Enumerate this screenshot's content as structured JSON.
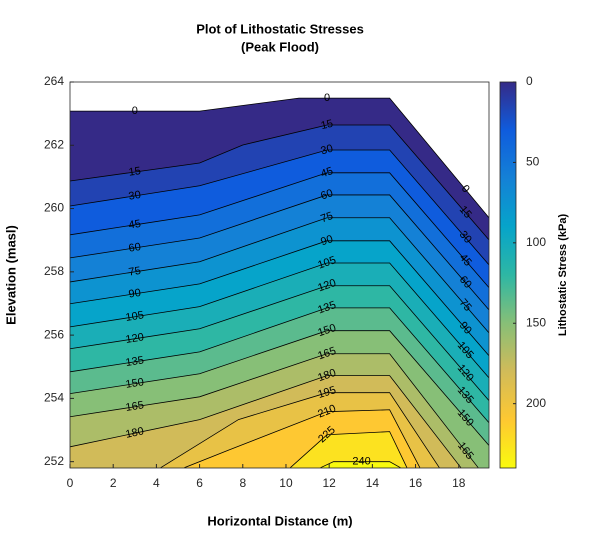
{
  "chart_data": {
    "type": "contour",
    "title": "Plot of Lithostatic Stresses",
    "subtitle": "(Peak Flood)",
    "x_label": "Horizontal Distance (m)",
    "y_label": "Elevation (masl)",
    "xlim": [
      0,
      19.4
    ],
    "ylim": [
      251.8,
      264
    ],
    "xticks": [
      0,
      2,
      4,
      6,
      8,
      10,
      12,
      14,
      16,
      18
    ],
    "yticks": [
      252,
      254,
      256,
      258,
      260,
      262,
      264
    ],
    "line_color": "#000000",
    "colorbar": {
      "label": "Lithostatic Stress (kPa)",
      "clim": [
        0,
        240
      ],
      "ticks": [
        0,
        50,
        100,
        150,
        200
      ],
      "direction": "reverse",
      "colormap": [
        "#352a87",
        "#0f5cdd",
        "#1481d6",
        "#06a4ca",
        "#2eb7a4",
        "#87bf77",
        "#d1bb59",
        "#fec832",
        "#f9fb0e"
      ]
    },
    "contours": [
      {
        "level": 0,
        "x": [
          0,
          6,
          10.6,
          14.8,
          19.4
        ],
        "y": [
          263.08,
          263.08,
          263.49,
          263.49,
          259.71
        ]
      },
      {
        "level": 15,
        "x": [
          0,
          6,
          8,
          11.9,
          14.8,
          19.4
        ],
        "y": [
          260.87,
          261.44,
          262.01,
          262.64,
          262.64,
          259.01
        ]
      },
      {
        "level": 30,
        "x": [
          0,
          6,
          11.9,
          14.8,
          19.4
        ],
        "y": [
          260.08,
          260.72,
          261.85,
          261.85,
          258.22
        ]
      },
      {
        "level": 45,
        "x": [
          0,
          6,
          11.9,
          14.8,
          19.4
        ],
        "y": [
          259.17,
          259.8,
          261.13,
          261.13,
          257.5
        ]
      },
      {
        "level": 60,
        "x": [
          0,
          6,
          11.9,
          14.8,
          19.4
        ],
        "y": [
          258.44,
          259.07,
          260.43,
          260.43,
          256.8
        ]
      },
      {
        "level": 75,
        "x": [
          0,
          6,
          11.9,
          14.8,
          19.4
        ],
        "y": [
          257.68,
          258.32,
          259.71,
          259.71,
          256.07
        ]
      },
      {
        "level": 90,
        "x": [
          0,
          6,
          11.9,
          14.8,
          19.4
        ],
        "y": [
          256.99,
          257.62,
          258.98,
          258.98,
          255.35
        ]
      },
      {
        "level": 105,
        "x": [
          0,
          6,
          11.9,
          14.8,
          19.4
        ],
        "y": [
          256.26,
          256.9,
          258.28,
          258.28,
          254.65
        ]
      },
      {
        "level": 120,
        "x": [
          0,
          6,
          11.9,
          14.8,
          19.4
        ],
        "y": [
          255.57,
          256.2,
          257.56,
          257.56,
          253.93
        ]
      },
      {
        "level": 135,
        "x": [
          0,
          6,
          11.9,
          14.8,
          19.4
        ],
        "y": [
          254.84,
          255.47,
          256.86,
          256.86,
          253.23
        ]
      },
      {
        "level": 150,
        "x": [
          0,
          6,
          11.9,
          14.8,
          19.4
        ],
        "y": [
          254.15,
          254.78,
          256.14,
          256.14,
          252.51
        ]
      },
      {
        "level": 165,
        "x": [
          0,
          6,
          11.9,
          14.8,
          18.9
        ],
        "y": [
          253.42,
          254.05,
          255.41,
          255.41,
          251.81
        ]
      },
      {
        "level": 180,
        "x": [
          0,
          6,
          11.9,
          14.8,
          18.1
        ],
        "y": [
          252.47,
          253.33,
          254.72,
          254.72,
          251.81
        ]
      },
      {
        "level": 195,
        "x": [
          4.2,
          7.8,
          11.9,
          14.8,
          17.1
        ],
        "y": [
          251.81,
          253.33,
          254.18,
          254.18,
          251.81
        ]
      },
      {
        "level": 210,
        "x": [
          5.3,
          7.4,
          11.9,
          14.8,
          16.2
        ],
        "y": [
          251.81,
          252.38,
          253.58,
          253.64,
          251.81
        ]
      },
      {
        "level": 225,
        "x": [
          10.2,
          11.9,
          14.8,
          15.6
        ],
        "y": [
          251.81,
          252.85,
          252.95,
          251.81
        ]
      },
      {
        "level": 240,
        "x": [
          11.6,
          12.2,
          14.8,
          15.3
        ],
        "y": [
          251.81,
          252.0,
          252.0,
          251.81
        ]
      }
    ]
  }
}
